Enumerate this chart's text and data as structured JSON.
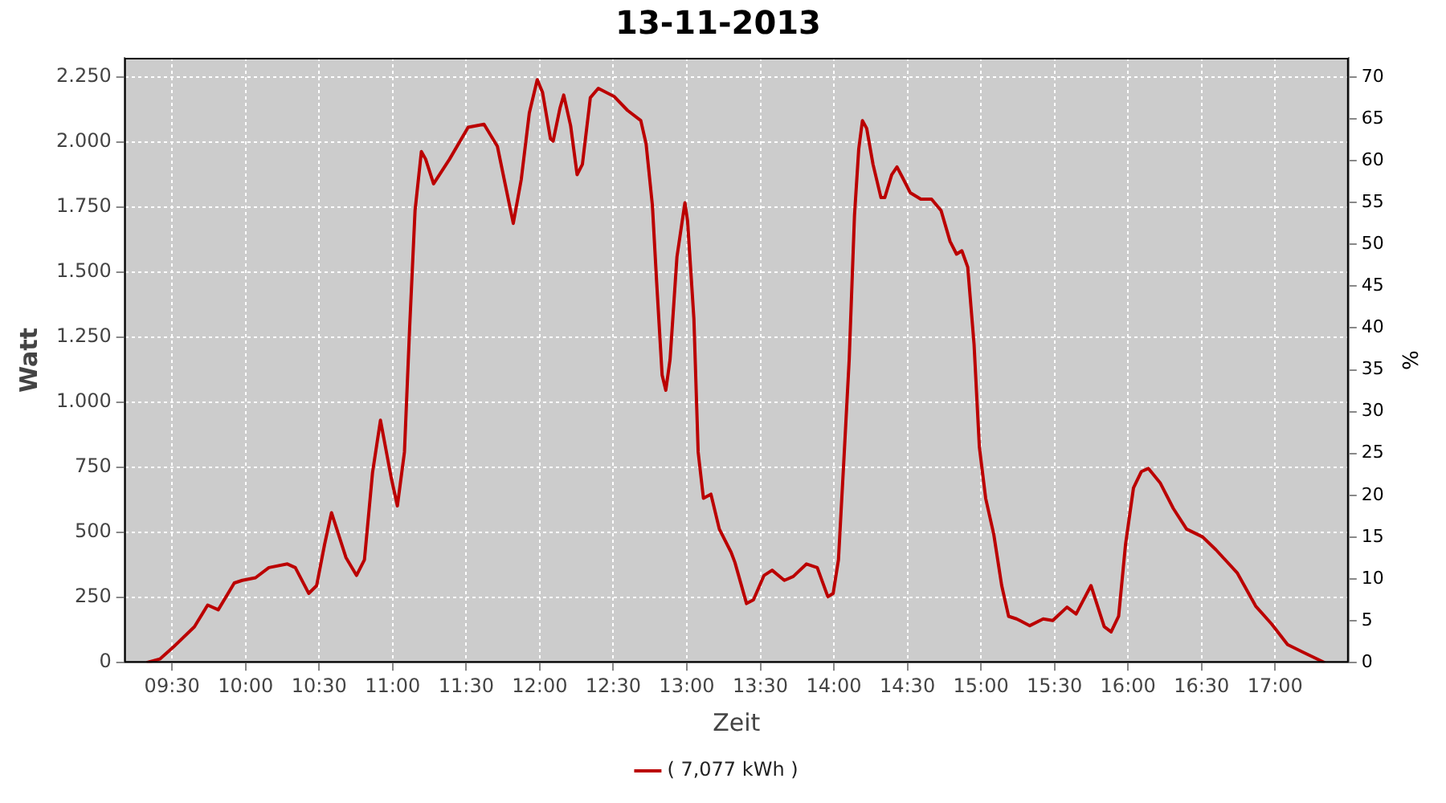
{
  "chart_data": {
    "type": "line",
    "title": "13-11-2013",
    "xlabel": "Zeit",
    "ylabel": "Watt",
    "y2label": "%",
    "x": [
      9.327,
      9.417,
      9.507,
      9.652,
      9.742,
      9.814,
      9.923,
      9.977,
      10.067,
      10.158,
      10.284,
      10.338,
      10.429,
      10.483,
      10.537,
      10.584,
      10.682,
      10.754,
      10.808,
      10.863,
      10.917,
      10.99,
      11.032,
      11.08,
      11.115,
      11.152,
      11.195,
      11.224,
      11.278,
      11.387,
      11.513,
      11.621,
      11.712,
      11.766,
      11.82,
      11.874,
      11.929,
      11.983,
      12.019,
      12.073,
      12.091,
      12.138,
      12.163,
      12.21,
      12.254,
      12.29,
      12.344,
      12.398,
      12.507,
      12.597,
      12.687,
      12.723,
      12.766,
      12.795,
      12.832,
      12.857,
      12.886,
      12.933,
      12.987,
      13.005,
      13.048,
      13.077,
      13.113,
      13.164,
      13.221,
      13.301,
      13.327,
      13.406,
      13.453,
      13.525,
      13.58,
      13.663,
      13.724,
      13.814,
      13.887,
      13.959,
      13.995,
      14.031,
      14.067,
      14.104,
      14.14,
      14.169,
      14.194,
      14.223,
      14.266,
      14.32,
      14.346,
      14.393,
      14.429,
      14.465,
      14.519,
      14.591,
      14.664,
      14.729,
      14.79,
      14.834,
      14.87,
      14.91,
      14.953,
      14.989,
      15.032,
      15.087,
      15.141,
      15.188,
      15.242,
      15.332,
      15.423,
      15.488,
      15.585,
      15.647,
      15.748,
      15.838,
      15.885,
      15.936,
      15.983,
      16.037,
      16.091,
      16.138,
      16.218,
      16.308,
      16.398,
      16.507,
      16.597,
      16.742,
      16.868,
      16.977,
      17.085,
      17.193,
      17.338
    ],
    "series": [
      {
        "name": "( 7,077 kWh )",
        "color": "#bb0000",
        "values": [
          0,
          14,
          59,
          138,
          221,
          203,
          306,
          316,
          326,
          365,
          379,
          365,
          266,
          296,
          454,
          576,
          404,
          335,
          395,
          730,
          931,
          710,
          602,
          809,
          1282,
          1736,
          1963,
          1934,
          1839,
          1934,
          2056,
          2068,
          1983,
          1835,
          1687,
          1855,
          2111,
          2239,
          2190,
          2012,
          2003,
          2131,
          2180,
          2062,
          1874,
          1914,
          2170,
          2206,
          2174,
          2121,
          2082,
          1993,
          1756,
          1460,
          1105,
          1046,
          1164,
          1559,
          1766,
          1697,
          1322,
          809,
          631,
          647,
          513,
          424,
          385,
          227,
          241,
          335,
          355,
          316,
          331,
          379,
          365,
          253,
          266,
          395,
          769,
          1164,
          1717,
          1973,
          2082,
          2052,
          1914,
          1786,
          1786,
          1874,
          1904,
          1865,
          1805,
          1780,
          1780,
          1736,
          1618,
          1569,
          1582,
          1519,
          1223,
          829,
          631,
          493,
          296,
          178,
          168,
          142,
          168,
          162,
          213,
          187,
          296,
          138,
          118,
          178,
          454,
          671,
          734,
          746,
          691,
          592,
          513,
          483,
          434,
          345,
          217,
          148,
          69,
          39,
          0
        ]
      }
    ],
    "xlim": [
      9.175,
      17.5
    ],
    "xticks": [
      {
        "value": 9.5,
        "label": "09:30"
      },
      {
        "value": 10,
        "label": "10:00"
      },
      {
        "value": 10.5,
        "label": "10:30"
      },
      {
        "value": 11,
        "label": "11:00"
      },
      {
        "value": 11.5,
        "label": "11:30"
      },
      {
        "value": 12,
        "label": "12:00"
      },
      {
        "value": 12.5,
        "label": "12:30"
      },
      {
        "value": 13,
        "label": "13:00"
      },
      {
        "value": 13.5,
        "label": "13:30"
      },
      {
        "value": 14,
        "label": "14:00"
      },
      {
        "value": 14.5,
        "label": "14:30"
      },
      {
        "value": 15,
        "label": "15:00"
      },
      {
        "value": 15.5,
        "label": "15:30"
      },
      {
        "value": 16,
        "label": "16:00"
      },
      {
        "value": 16.5,
        "label": "16:30"
      },
      {
        "value": 17,
        "label": "17:00"
      }
    ],
    "ylim": [
      0,
      2323
    ],
    "yticks": [
      0,
      250,
      500,
      750,
      {
        "value": 1000,
        "label": "1.000"
      },
      {
        "value": 1250,
        "label": "1.250"
      },
      {
        "value": 1500,
        "label": "1.500"
      },
      {
        "value": 1750,
        "label": "1.750"
      },
      {
        "value": 2000,
        "label": "2.000"
      },
      {
        "value": 2250,
        "label": "2.250"
      }
    ],
    "y2lim": [
      0,
      72.3
    ],
    "y2ticks": [
      0,
      5,
      10,
      15,
      20,
      25,
      30,
      35,
      40,
      45,
      50,
      55,
      60,
      65,
      70
    ],
    "grid": true,
    "legend": "bottom",
    "marker": "none",
    "line_style": "solid"
  }
}
